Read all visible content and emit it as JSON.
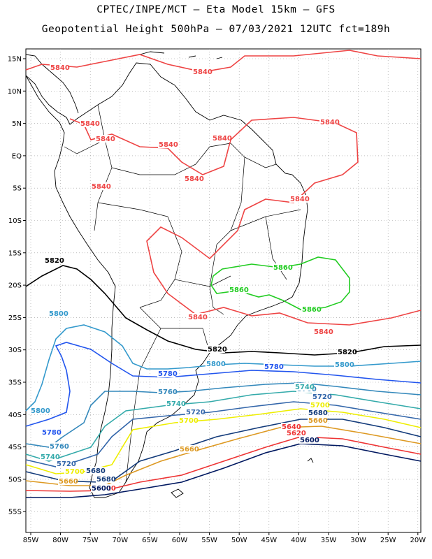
{
  "title_line1": "CPTEC/INPE/MCT  –  Eta Model 15km  – GFS",
  "title_line2": "Geopotential Height 500hPa – 07/03/2021 12UTC fct=189h",
  "axes": {
    "lon_labels": [
      "85W",
      "80W",
      "75W",
      "70W",
      "65W",
      "60W",
      "55W",
      "50W",
      "45W",
      "40W",
      "35W",
      "30W",
      "25W",
      "20W"
    ],
    "lat_labels": [
      "15N",
      "10N",
      "5N",
      "EQ",
      "5S",
      "10S",
      "15S",
      "20S",
      "25S",
      "30S",
      "35S",
      "40S",
      "45S",
      "50S",
      "55S"
    ]
  },
  "contours": [
    {
      "value": "5860",
      "color": "#22cc22"
    },
    {
      "value": "5840",
      "color": "#ee4444"
    },
    {
      "value": "5820",
      "color": "#000000"
    },
    {
      "value": "5800",
      "color": "#3399cc"
    },
    {
      "value": "5780",
      "color": "#2255ee"
    },
    {
      "value": "5760",
      "color": "#3388bb"
    },
    {
      "value": "5740",
      "color": "#33aaaa"
    },
    {
      "value": "5720",
      "color": "#3366aa"
    },
    {
      "value": "5700",
      "color": "#eeee00"
    },
    {
      "value": "5680",
      "color": "#123a7a"
    },
    {
      "value": "5660",
      "color": "#dd9922"
    },
    {
      "value": "5620",
      "color": "#ee3333"
    },
    {
      "value": "5600",
      "color": "#001860"
    }
  ]
}
